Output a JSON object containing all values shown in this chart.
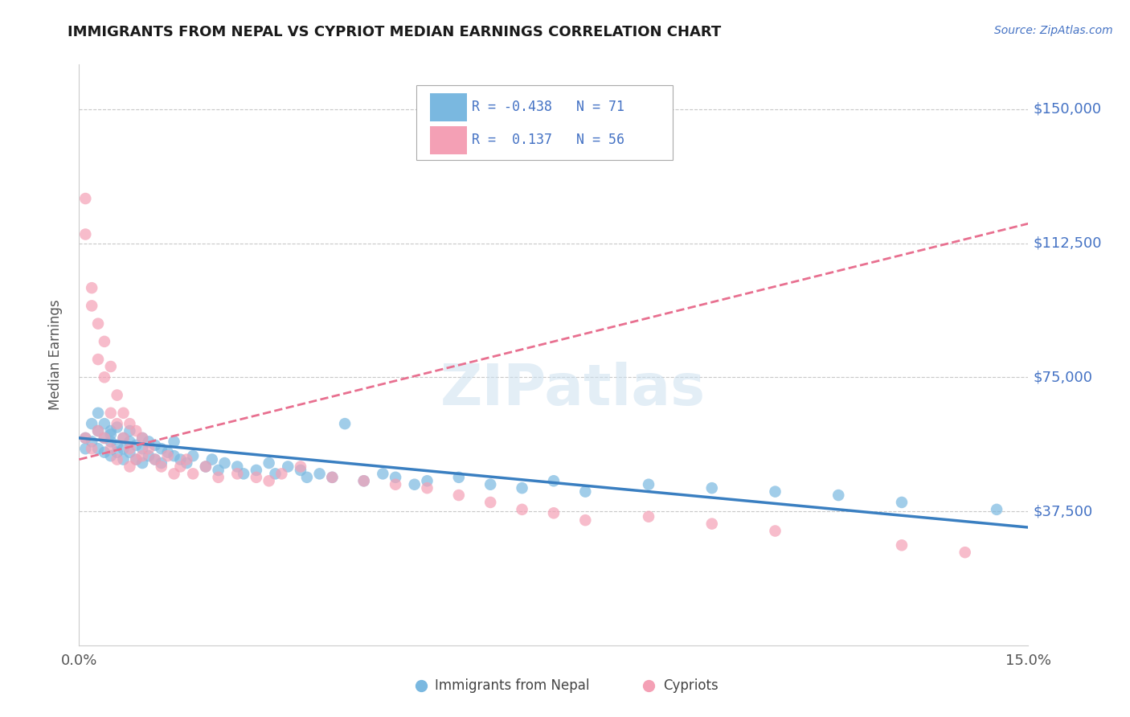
{
  "title": "IMMIGRANTS FROM NEPAL VS CYPRIOT MEDIAN EARNINGS CORRELATION CHART",
  "source": "Source: ZipAtlas.com",
  "ylabel": "Median Earnings",
  "xlim": [
    0.0,
    0.15
  ],
  "ylim": [
    0,
    162500
  ],
  "yticks": [
    0,
    37500,
    75000,
    112500,
    150000
  ],
  "ytick_labels": [
    "",
    "$37,500",
    "$75,000",
    "$112,500",
    "$150,000"
  ],
  "legend_r_nepal": "-0.438",
  "legend_n_nepal": "71",
  "legend_r_cypriot": "0.137",
  "legend_n_cypriot": "56",
  "nepal_color": "#7ab8e0",
  "cypriot_color": "#f4a0b5",
  "nepal_line_color": "#3a7fc1",
  "cypriot_line_color": "#e87090",
  "watermark_text": "ZIPatlas",
  "background": "#ffffff",
  "grid_color": "#c8c8c8",
  "nepal_scatter_x": [
    0.001,
    0.001,
    0.002,
    0.002,
    0.003,
    0.003,
    0.003,
    0.004,
    0.004,
    0.004,
    0.005,
    0.005,
    0.005,
    0.005,
    0.006,
    0.006,
    0.006,
    0.007,
    0.007,
    0.007,
    0.008,
    0.008,
    0.008,
    0.009,
    0.009,
    0.01,
    0.01,
    0.01,
    0.011,
    0.011,
    0.012,
    0.012,
    0.013,
    0.013,
    0.014,
    0.015,
    0.015,
    0.016,
    0.017,
    0.018,
    0.02,
    0.021,
    0.022,
    0.023,
    0.025,
    0.026,
    0.028,
    0.03,
    0.031,
    0.033,
    0.035,
    0.036,
    0.038,
    0.04,
    0.042,
    0.045,
    0.048,
    0.05,
    0.053,
    0.055,
    0.06,
    0.065,
    0.07,
    0.075,
    0.08,
    0.09,
    0.1,
    0.11,
    0.12,
    0.13,
    0.145
  ],
  "nepal_scatter_y": [
    58000,
    55000,
    62000,
    57000,
    65000,
    60000,
    55000,
    62000,
    58000,
    54000,
    60000,
    57000,
    53000,
    59000,
    56000,
    61000,
    54000,
    58000,
    55000,
    52000,
    57000,
    54000,
    60000,
    56000,
    52000,
    58000,
    55000,
    51000,
    57000,
    53000,
    56000,
    52000,
    55000,
    51000,
    54000,
    57000,
    53000,
    52000,
    51000,
    53000,
    50000,
    52000,
    49000,
    51000,
    50000,
    48000,
    49000,
    51000,
    48000,
    50000,
    49000,
    47000,
    48000,
    47000,
    62000,
    46000,
    48000,
    47000,
    45000,
    46000,
    47000,
    45000,
    44000,
    46000,
    43000,
    45000,
    44000,
    43000,
    42000,
    40000,
    38000
  ],
  "cypriot_scatter_x": [
    0.001,
    0.001,
    0.001,
    0.002,
    0.002,
    0.002,
    0.003,
    0.003,
    0.003,
    0.004,
    0.004,
    0.004,
    0.005,
    0.005,
    0.005,
    0.006,
    0.006,
    0.006,
    0.007,
    0.007,
    0.008,
    0.008,
    0.008,
    0.009,
    0.009,
    0.01,
    0.01,
    0.011,
    0.012,
    0.013,
    0.014,
    0.015,
    0.016,
    0.017,
    0.018,
    0.02,
    0.022,
    0.025,
    0.028,
    0.03,
    0.032,
    0.035,
    0.04,
    0.045,
    0.05,
    0.055,
    0.06,
    0.065,
    0.07,
    0.075,
    0.08,
    0.09,
    0.1,
    0.11,
    0.13,
    0.14
  ],
  "cypriot_scatter_y": [
    125000,
    115000,
    58000,
    100000,
    95000,
    55000,
    90000,
    80000,
    60000,
    85000,
    75000,
    58000,
    78000,
    65000,
    55000,
    70000,
    62000,
    52000,
    65000,
    58000,
    62000,
    55000,
    50000,
    60000,
    52000,
    58000,
    53000,
    55000,
    52000,
    50000,
    53000,
    48000,
    50000,
    52000,
    48000,
    50000,
    47000,
    48000,
    47000,
    46000,
    48000,
    50000,
    47000,
    46000,
    45000,
    44000,
    42000,
    40000,
    38000,
    37000,
    35000,
    36000,
    34000,
    32000,
    28000,
    26000
  ],
  "nepal_trendline_x": [
    0.0,
    0.15
  ],
  "nepal_trendline_y": [
    58000,
    33000
  ],
  "cypriot_trendline_x": [
    0.0,
    0.15
  ],
  "cypriot_trendline_y": [
    52000,
    118000
  ]
}
